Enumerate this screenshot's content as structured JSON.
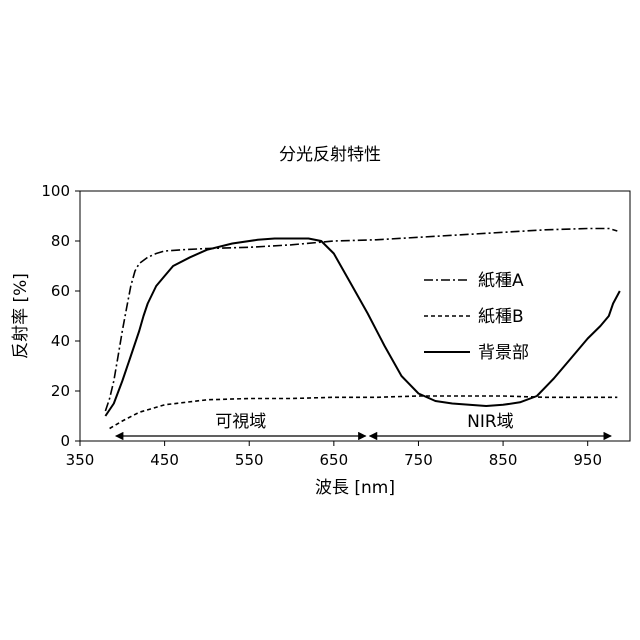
{
  "chart_data": {
    "type": "line",
    "title": "分光反射特性",
    "xlabel": "波長 [nm]",
    "ylabel": "反射率 [%]",
    "xlim": [
      350,
      1000
    ],
    "ylim": [
      0,
      100
    ],
    "xticks": [
      "350",
      "450",
      "550",
      "650",
      "750",
      "850",
      "950"
    ],
    "yticks": [
      "0",
      "20",
      "40",
      "60",
      "80",
      "100"
    ],
    "grid": false,
    "legend_position": "right",
    "series": [
      {
        "name": "紙種A",
        "style": "dash-dot",
        "x": [
          380,
          385,
          390,
          395,
          400,
          405,
          410,
          415,
          420,
          430,
          440,
          450,
          470,
          500,
          550,
          600,
          650,
          700,
          750,
          800,
          850,
          900,
          950,
          975,
          985
        ],
        "y": [
          12,
          17,
          24,
          34,
          44,
          53,
          62,
          68,
          71,
          73.5,
          75,
          76,
          76.5,
          77,
          77.5,
          78.5,
          80,
          80.5,
          81.5,
          82.5,
          83.5,
          84.5,
          85,
          85,
          84
        ]
      },
      {
        "name": "紙種B",
        "style": "dashed",
        "x": [
          385,
          400,
          420,
          450,
          500,
          550,
          600,
          650,
          700,
          750,
          800,
          850,
          900,
          950,
          985
        ],
        "y": [
          5,
          8,
          11.5,
          14.5,
          16.5,
          17,
          17,
          17.5,
          17.5,
          18,
          18,
          18,
          17.5,
          17.5,
          17.5
        ]
      },
      {
        "name": "背景部",
        "style": "solid",
        "x": [
          380,
          390,
          400,
          410,
          420,
          425,
          430,
          440,
          450,
          460,
          480,
          500,
          530,
          560,
          580,
          600,
          620,
          635,
          650,
          670,
          690,
          710,
          730,
          750,
          770,
          790,
          810,
          830,
          850,
          870,
          890,
          910,
          930,
          950,
          965,
          975,
          980,
          988
        ],
        "y": [
          10,
          15,
          24,
          34,
          44,
          50,
          55,
          62,
          66,
          70,
          73.5,
          76.5,
          79,
          80.5,
          81,
          81,
          81,
          80,
          75,
          63,
          51,
          38,
          26,
          19,
          16,
          15,
          14.5,
          14,
          14.5,
          15.5,
          18,
          25,
          33,
          41,
          46,
          50,
          55,
          60
        ]
      }
    ],
    "annotations": [
      {
        "text": "可視域",
        "x_range": [
          390,
          690
        ]
      },
      {
        "text": "NIR域",
        "x_range": [
          690,
          980
        ]
      }
    ]
  }
}
